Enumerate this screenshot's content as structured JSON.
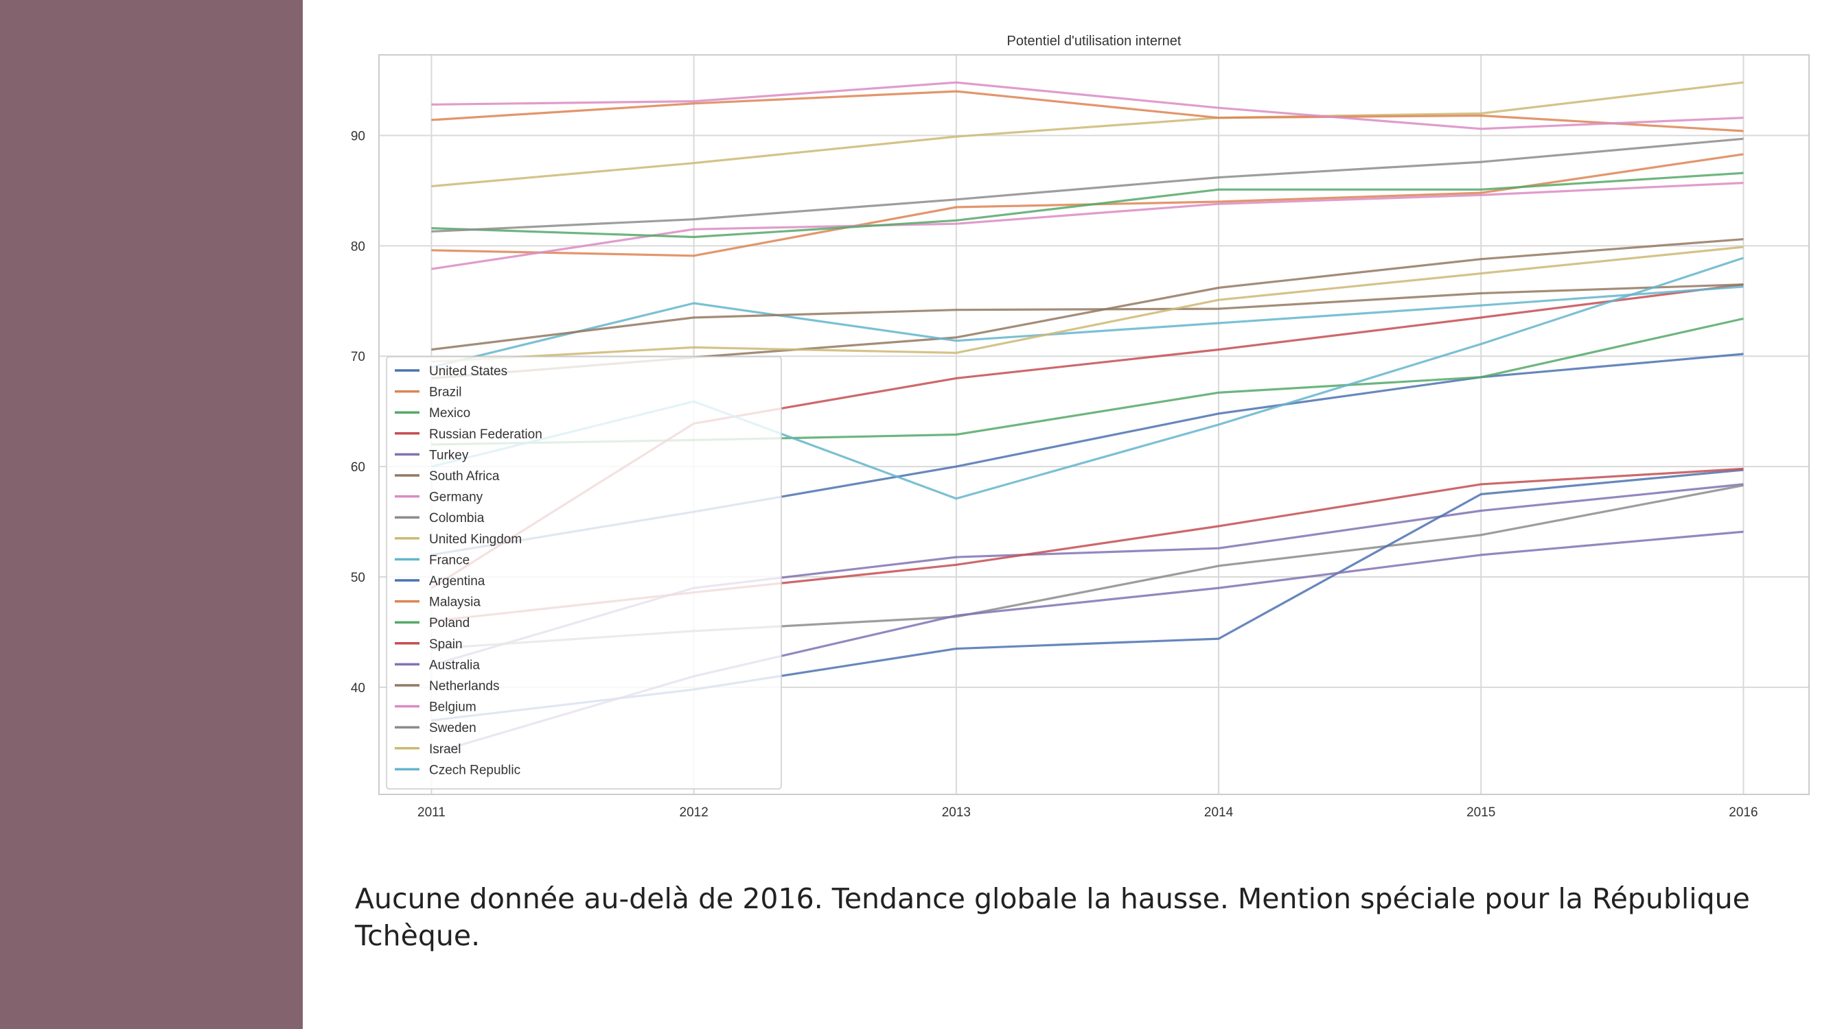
{
  "caption": "Aucune donnée au-delà de 2016. Tendance globale la hausse. Mention spéciale pour la République Tchèque.",
  "colors": {
    "sidebar": "#83636d",
    "grid": "#d9d9d9",
    "axes": "#cccccc"
  },
  "chart_data": {
    "type": "line",
    "title": "Potentiel d'utilisation internet",
    "xlabel": "",
    "ylabel": "",
    "x": [
      2011,
      2012,
      2013,
      2014,
      2015,
      2016
    ],
    "xlim": [
      2010.8,
      2016.25
    ],
    "ylim": [
      30.3,
      97.3
    ],
    "yticks": [
      40,
      50,
      60,
      70,
      80,
      90
    ],
    "grid": true,
    "legend_position": "lower-left",
    "series": [
      {
        "name": "United States",
        "color": "#4c72b0",
        "values": [
          52.0,
          55.9,
          60.0,
          64.8,
          68.1,
          70.2
        ]
      },
      {
        "name": "Brazil",
        "color": "#dd8452",
        "values": [
          79.6,
          79.1,
          83.5,
          84.0,
          84.8,
          88.3
        ]
      },
      {
        "name": "Mexico",
        "color": "#55a868",
        "values": [
          62.0,
          62.4,
          62.9,
          66.7,
          68.1,
          73.4
        ]
      },
      {
        "name": "Russian Federation",
        "color": "#c44e52",
        "values": [
          49.0,
          63.9,
          68.0,
          70.6,
          73.5,
          76.5
        ]
      },
      {
        "name": "Turkey",
        "color": "#8172b3",
        "values": [
          42.0,
          49.0,
          51.8,
          52.6,
          56.0,
          58.4
        ]
      },
      {
        "name": "South Africa",
        "color": "#937860",
        "values": [
          68.0,
          69.9,
          71.7,
          76.2,
          78.8,
          80.6
        ]
      },
      {
        "name": "Germany",
        "color": "#da8bc3",
        "values": [
          77.9,
          81.5,
          82.0,
          83.8,
          84.6,
          85.7
        ]
      },
      {
        "name": "Colombia",
        "color": "#8c8c8c",
        "values": [
          43.5,
          45.1,
          46.4,
          51.0,
          53.8,
          58.3
        ]
      },
      {
        "name": "United Kingdom",
        "color": "#ccb974",
        "values": [
          85.4,
          87.5,
          89.9,
          91.6,
          92.0,
          94.8
        ]
      },
      {
        "name": "France",
        "color": "#64b5cd",
        "values": [
          69.0,
          74.8,
          71.4,
          73.0,
          74.6,
          76.3
        ]
      },
      {
        "name": "Argentina",
        "color": "#4c72b0",
        "values": [
          37.0,
          39.8,
          43.5,
          44.4,
          57.5,
          59.7
        ]
      },
      {
        "name": "Malaysia",
        "color": "#dd8452",
        "values": [
          91.4,
          92.9,
          94.0,
          91.6,
          91.8,
          90.4
        ]
      },
      {
        "name": "Poland",
        "color": "#55a868",
        "values": [
          81.6,
          80.8,
          82.3,
          85.1,
          85.1,
          86.6
        ]
      },
      {
        "name": "Spain",
        "color": "#c44e52",
        "values": [
          46.0,
          48.6,
          51.1,
          54.6,
          58.4,
          59.8
        ]
      },
      {
        "name": "Australia",
        "color": "#8172b3",
        "values": [
          34.0,
          41.0,
          46.5,
          49.0,
          52.0,
          54.1
        ]
      },
      {
        "name": "Netherlands",
        "color": "#937860",
        "values": [
          70.6,
          73.5,
          74.2,
          74.3,
          75.7,
          76.5
        ]
      },
      {
        "name": "Belgium",
        "color": "#da8bc3",
        "values": [
          92.8,
          93.1,
          94.8,
          92.5,
          90.6,
          91.6
        ]
      },
      {
        "name": "Sweden",
        "color": "#8c8c8c",
        "values": [
          81.3,
          82.4,
          84.2,
          86.2,
          87.6,
          89.7
        ]
      },
      {
        "name": "Israel",
        "color": "#ccb974",
        "values": [
          69.5,
          70.8,
          70.3,
          75.1,
          77.5,
          79.9
        ]
      },
      {
        "name": "Czech Republic",
        "color": "#64b5cd",
        "values": [
          60.0,
          65.9,
          57.1,
          63.8,
          71.1,
          78.9
        ]
      }
    ]
  }
}
